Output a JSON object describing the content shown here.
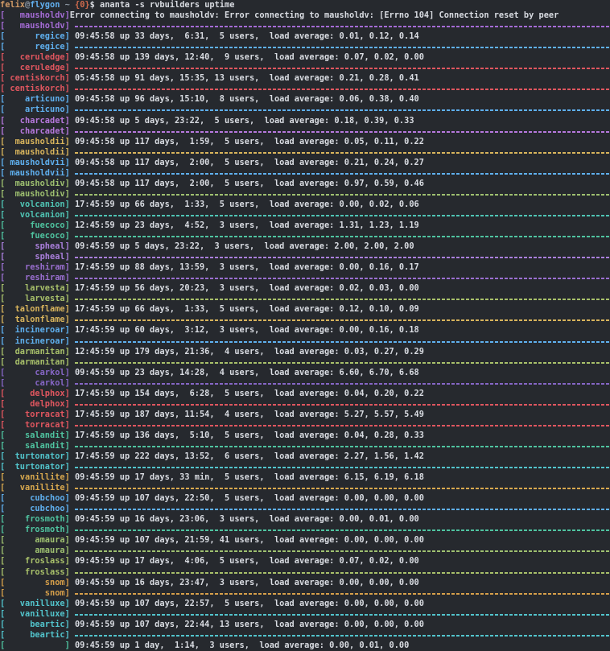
{
  "terminal": {
    "bg": "#26292e",
    "fg": "#d9dce2",
    "prompt": {
      "segments": [
        {
          "text": "felix",
          "color": "#d19a66"
        },
        {
          "text": "@",
          "color": "#8c96a3"
        },
        {
          "text": "flygon",
          "color": "#61afef"
        },
        {
          "text": " ",
          "color": ""
        },
        {
          "text": "~",
          "color": "#8c96a3"
        },
        {
          "text": " ",
          "color": ""
        },
        {
          "text": "{0}",
          "color": "#cf6a4c"
        },
        {
          "text": "$",
          "color": "#d9dce2"
        },
        {
          "text": " ananta -s rvbuilders uptime",
          "color": "#d9dce2"
        }
      ],
      "command": "ananta -s rvbuilders uptime"
    },
    "hosts": [
      {
        "name": "mausholdv",
        "color": "#a56cd6",
        "output": "Error connecting to mausholdv: Error connecting to mausholdv: [Errno 104] Connection reset by peer"
      },
      {
        "name": "regice",
        "color": "#5fb0ef",
        "output": " 09:45:58 up 33 days,  6:31,  5 users,  load average: 0.01, 0.12, 0.14"
      },
      {
        "name": "ceruledge",
        "color": "#e0565f",
        "output": " 09:45:58 up 139 days, 12:40,  9 users,  load average: 0.07, 0.02, 0.00"
      },
      {
        "name": "centiskorch",
        "color": "#e0565f",
        "output": " 05:45:58 up 91 days, 15:35, 13 users,  load average: 0.21, 0.28, 0.41"
      },
      {
        "name": "articuno",
        "color": "#5fb0ef",
        "output": " 09:45:58 up 96 days, 15:10,  8 users,  load average: 0.06, 0.38, 0.40"
      },
      {
        "name": "charcadet",
        "color": "#b678dd",
        "output": " 09:45:58 up 5 days, 23:22,  5 users,  load average: 0.18, 0.39, 0.33"
      },
      {
        "name": "mausholdii",
        "color": "#d8b45c",
        "output": " 09:45:58 up 117 days,  1:59,  5 users,  load average: 0.05, 0.11, 0.22"
      },
      {
        "name": "mausholdvii",
        "color": "#5fb0ef",
        "output": " 09:45:58 up 117 days,  2:00,  5 users,  load average: 0.21, 0.24, 0.27"
      },
      {
        "name": "mausholdiv",
        "color": "#9ec070",
        "output": " 09:45:58 up 117 days,  2:00,  5 users,  load average: 0.97, 0.59, 0.46"
      },
      {
        "name": "volcanion",
        "color": "#4fc4b4",
        "output": " 17:45:59 up 66 days,  1:33,  5 users,  load average: 0.00, 0.02, 0.06"
      },
      {
        "name": "fuecoco",
        "color": "#4fc4a0",
        "output": " 12:45:59 up 23 days,  4:52,  3 users,  load average: 1.31, 1.23, 1.19"
      },
      {
        "name": "spheal",
        "color": "#aa7fdc",
        "output": " 09:45:59 up 5 days, 23:22,  3 users,  load average: 2.00, 2.00, 2.00"
      },
      {
        "name": "reshiram",
        "color": "#9a6fd0",
        "output": " 17:45:59 up 88 days, 13:59,  3 users,  load average: 0.00, 0.16, 0.17"
      },
      {
        "name": "larvesta",
        "color": "#a8c06a",
        "output": " 17:45:59 up 56 days, 20:23,  3 users,  load average: 0.02, 0.03, 0.00"
      },
      {
        "name": "talonflame",
        "color": "#d8b45c",
        "output": " 17:45:59 up 66 days,  1:33,  5 users,  load average: 0.12, 0.10, 0.09"
      },
      {
        "name": "incineroar",
        "color": "#5fb0ef",
        "output": " 17:45:59 up 60 days,  3:12,  3 users,  load average: 0.00, 0.16, 0.18"
      },
      {
        "name": "darmanitan",
        "color": "#a8c06a",
        "output": " 12:45:59 up 179 days, 21:36,  4 users,  load average: 0.03, 0.27, 0.29"
      },
      {
        "name": "carkol",
        "color": "#8666c6",
        "output": " 09:45:59 up 23 days, 14:28,  4 users,  load average: 6.60, 6.70, 6.68"
      },
      {
        "name": "delphox",
        "color": "#e0565f",
        "output": " 17:45:59 up 154 days,  6:28,  5 users,  load average: 0.04, 0.20, 0.22"
      },
      {
        "name": "torracat",
        "color": "#e0565f",
        "output": " 17:45:59 up 187 days, 11:54,  4 users,  load average: 5.27, 5.57, 5.49"
      },
      {
        "name": "salandit",
        "color": "#4fc4a0",
        "output": " 17:45:59 up 136 days,  5:10,  5 users,  load average: 0.04, 0.28, 0.33"
      },
      {
        "name": "turtonator",
        "color": "#52c4cc",
        "output": " 17:45:59 up 222 days, 13:52,  6 users,  load average: 2.27, 1.56, 1.42"
      },
      {
        "name": "vanillite",
        "color": "#d8a84e",
        "output": " 09:45:59 up 17 days, 33 min,  5 users,  load average: 6.15, 6.19, 6.18"
      },
      {
        "name": "cubchoo",
        "color": "#5fb0ef",
        "output": " 09:45:59 up 107 days, 22:50,  5 users,  load average: 0.00, 0.00, 0.00"
      },
      {
        "name": "frosmoth",
        "color": "#4fc4a0",
        "output": " 09:45:59 up 16 days, 23:06,  3 users,  load average: 0.00, 0.01, 0.00"
      },
      {
        "name": "amaura",
        "color": "#9ec070",
        "output": " 09:45:59 up 107 days, 21:59, 41 users,  load average: 0.00, 0.00, 0.00"
      },
      {
        "name": "froslass",
        "color": "#a8c06a",
        "output": " 09:45:59 up 17 days,  4:06,  5 users,  load average: 0.07, 0.02, 0.00"
      },
      {
        "name": "snom",
        "color": "#d69f4a",
        "output": " 09:45:59 up 16 days, 23:47,  3 users,  load average: 0.00, 0.00, 0.00"
      },
      {
        "name": "vanilluxe",
        "color": "#52c4cc",
        "output": " 09:45:59 up 107 days, 22:57,  5 users,  load average: 0.00, 0.00, 0.00"
      },
      {
        "name": "beartic",
        "color": "#52c4cc",
        "output": " 09:45:59 up 107 days, 22:44, 13 users,  load average: 0.00, 0.00, 0.00"
      },
      {
        "name": "",
        "color": "#4fc4a0",
        "output": " 09:45:59 up 1 day,  1:14,  3 users,  load average: 0.00, 0.01, 0.00",
        "clipped": true
      }
    ]
  }
}
